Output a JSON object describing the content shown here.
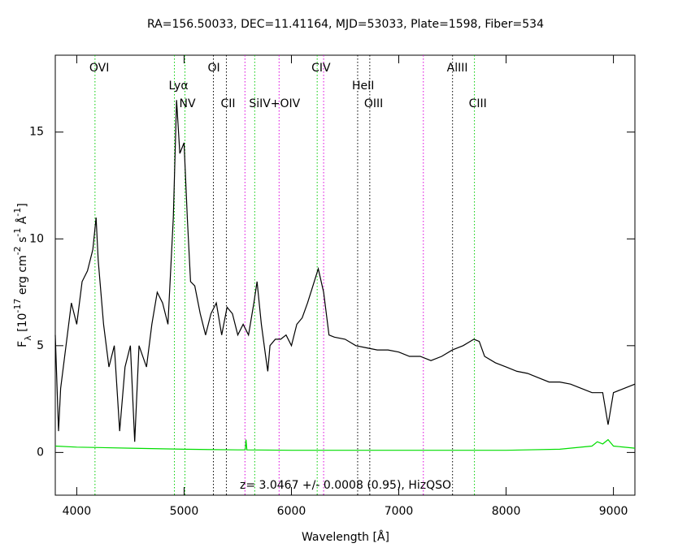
{
  "chart_data": {
    "type": "line",
    "title": "RA=156.50033, DEC=11.41164, MJD=53033, Plate=1598, Fiber=534",
    "x_label": "Wavelength [Å]",
    "y_label": [
      {
        "text": "F",
        "style": "normal"
      },
      {
        "text": "λ",
        "style": "sub"
      },
      {
        "text": " [10",
        "style": "normal"
      },
      {
        "text": "-17",
        "style": "sup"
      },
      {
        "text": " erg cm",
        "style": "normal"
      },
      {
        "text": "-2",
        "style": "sup"
      },
      {
        "text": " s",
        "style": "normal"
      },
      {
        "text": "-1",
        "style": "sup"
      },
      {
        "text": " Å",
        "style": "normal"
      },
      {
        "text": "-1",
        "style": "sup"
      },
      {
        "text": "]",
        "style": "normal"
      }
    ],
    "annotation": "z= 3.0467 +/- 0.0008 (0.95), HizQSO",
    "xlim": [
      3800,
      9200
    ],
    "ylim": [
      -2,
      18.6
    ],
    "xticks": [
      4000,
      5000,
      6000,
      7000,
      8000,
      9000
    ],
    "yticks": [
      0,
      5,
      10,
      15
    ],
    "series": [
      {
        "name": "flux",
        "color": "#000000",
        "x": [
          3800,
          3830,
          3850,
          3900,
          3950,
          4000,
          4050,
          4100,
          4150,
          4180,
          4200,
          4250,
          4300,
          4350,
          4400,
          4450,
          4500,
          4540,
          4580,
          4650,
          4700,
          4750,
          4800,
          4850,
          4900,
          4930,
          4960,
          5000,
          5030,
          5060,
          5100,
          5150,
          5200,
          5250,
          5300,
          5350,
          5400,
          5450,
          5500,
          5550,
          5600,
          5650,
          5680,
          5720,
          5760,
          5780,
          5800,
          5850,
          5900,
          5950,
          6000,
          6050,
          6100,
          6150,
          6200,
          6250,
          6300,
          6350,
          6400,
          6500,
          6600,
          6700,
          6800,
          6900,
          7000,
          7100,
          7200,
          7300,
          7400,
          7500,
          7600,
          7700,
          7750,
          7800,
          7900,
          8000,
          8100,
          8200,
          8300,
          8400,
          8500,
          8600,
          8700,
          8800,
          8900,
          8950,
          9000,
          9100,
          9200
        ],
        "values": [
          5.5,
          1,
          3,
          5,
          7,
          6,
          8,
          8.5,
          9.5,
          11,
          9,
          6,
          4,
          5,
          1,
          4,
          5,
          0.5,
          5,
          4,
          6,
          7.5,
          7,
          6,
          11,
          16.5,
          14,
          14.5,
          11,
          8,
          7.8,
          6.5,
          5.5,
          6.5,
          7,
          5.5,
          6.8,
          6.5,
          5.5,
          6,
          5.5,
          7,
          8,
          6,
          4.5,
          3.8,
          5,
          5.3,
          5.3,
          5.5,
          5,
          6,
          6.3,
          7,
          7.8,
          8.6,
          7.5,
          5.5,
          5.4,
          5.3,
          5,
          4.9,
          4.8,
          4.8,
          4.7,
          4.5,
          4.5,
          4.3,
          4.5,
          4.8,
          5,
          5.3,
          5.2,
          4.5,
          4.2,
          4,
          3.8,
          3.7,
          3.5,
          3.3,
          3.3,
          3.2,
          3,
          2.8,
          2.8,
          1.3,
          2.8,
          3,
          3.2
        ]
      },
      {
        "name": "error",
        "color": "#00dd00",
        "x": [
          3800,
          4000,
          4500,
          5000,
          5500,
          5570,
          5577,
          5585,
          6000,
          7000,
          8000,
          8500,
          8800,
          8850,
          8900,
          8950,
          9000,
          9200
        ],
        "values": [
          0.3,
          0.25,
          0.2,
          0.15,
          0.12,
          0.12,
          0.6,
          0.12,
          0.1,
          0.1,
          0.1,
          0.15,
          0.3,
          0.5,
          0.4,
          0.6,
          0.3,
          0.2
        ]
      }
    ],
    "lines": [
      {
        "x": 4170,
        "label": "OVI",
        "color": "#00cc00"
      },
      {
        "x": 4910,
        "label": "Lyα",
        "color": "#00cc00"
      },
      {
        "x": 5008,
        "label": "NV",
        "color": "#00cc00"
      },
      {
        "x": 5273,
        "label": "OI",
        "color": "#000000"
      },
      {
        "x": 5394,
        "label": "CII",
        "color": "#000000"
      },
      {
        "x": 5658,
        "label": "SiIV+OIV",
        "color": "#00cc00"
      },
      {
        "x": 6240,
        "label": "CIV",
        "color": "#00cc00"
      },
      {
        "x": 6617,
        "label": "HeII",
        "color": "#000000"
      },
      {
        "x": 6730,
        "label": "OIII",
        "color": "#000000"
      },
      {
        "x": 7501,
        "label": "AlIII",
        "color": "#000000"
      },
      {
        "x": 7705,
        "label": "CIII",
        "color": "#00cc00"
      }
    ],
    "sky_lines": {
      "color": "#dd00dd",
      "x": [
        5567,
        5885,
        6300,
        7229
      ]
    }
  }
}
